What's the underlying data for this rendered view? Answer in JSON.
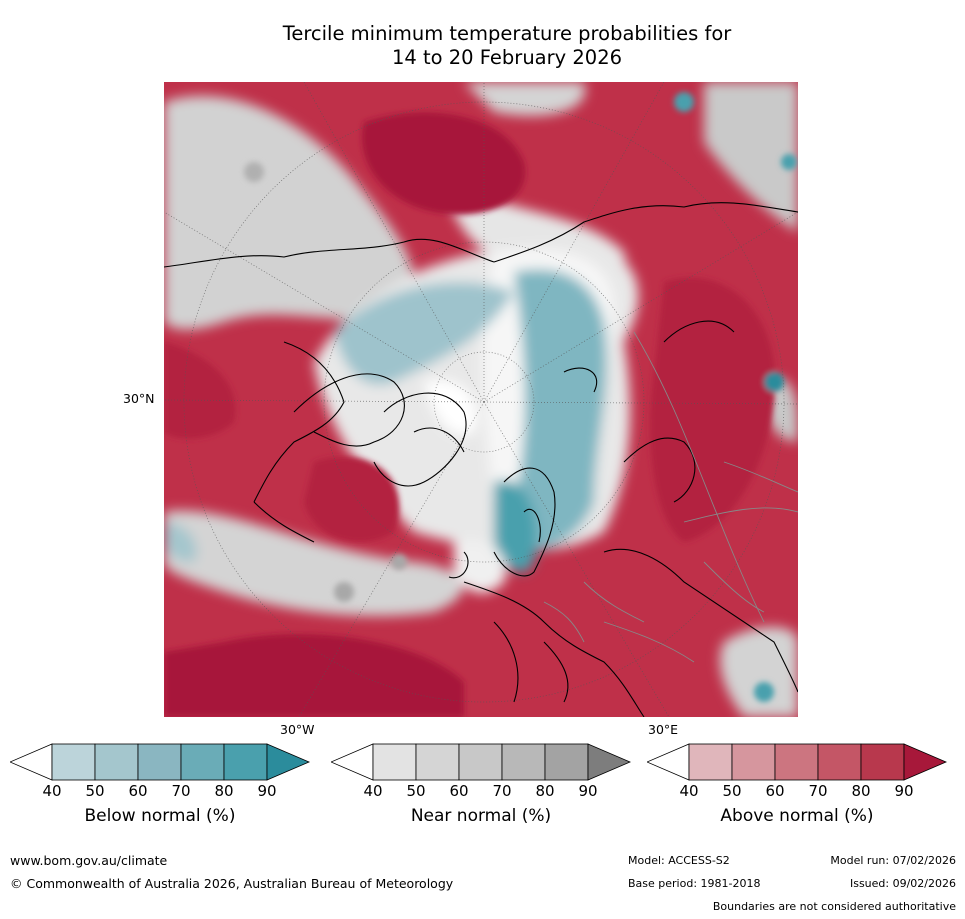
{
  "title_line1": "Tercile minimum temperature probabilities for",
  "title_line2": "14 to 20 February 2026",
  "map": {
    "lat_label": "30°N",
    "lon_label_left": "30°W",
    "lon_label_right": "30°E"
  },
  "legends": [
    {
      "title": "Below normal (%)",
      "ticks": [
        "40",
        "50",
        "60",
        "70",
        "80",
        "90"
      ],
      "colors": [
        "#ffffff",
        "#bcd4da",
        "#a4c6cd",
        "#8ab6c1",
        "#6aacb7",
        "#4aa0ad",
        "#2b8c9c"
      ]
    },
    {
      "title": "Near normal (%)",
      "ticks": [
        "40",
        "50",
        "60",
        "70",
        "80",
        "90"
      ],
      "colors": [
        "#ffffff",
        "#e3e3e3",
        "#d5d5d5",
        "#c8c8c8",
        "#b8b8b8",
        "#a3a3a3",
        "#7d7d7d"
      ]
    },
    {
      "title": "Above normal (%)",
      "ticks": [
        "40",
        "50",
        "60",
        "70",
        "80",
        "90"
      ],
      "colors": [
        "#ffffff",
        "#e0b6bb",
        "#d6969e",
        "#cc7580",
        "#c45666",
        "#b8384d",
        "#a7183a"
      ]
    }
  ],
  "footer": {
    "website": "www.bom.gov.au/climate",
    "copyright": "© Commonwealth of Australia 2026, Australian Bureau of Meteorology",
    "model": "Model: ACCESS-S2",
    "base_period": "Base period: 1981-2018",
    "model_run": "Model run: 07/02/2026",
    "issued": "Issued: 09/02/2026",
    "disclaimer": "Boundaries are not considered authoritative"
  }
}
